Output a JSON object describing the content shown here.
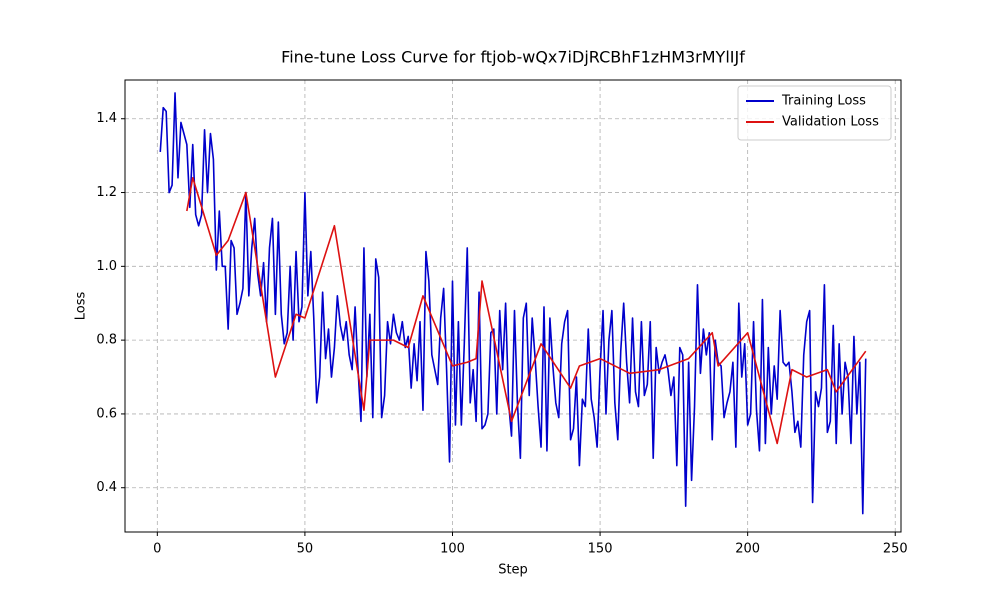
{
  "chart_data": {
    "type": "line",
    "title": "Fine-tune Loss Curve for ftjob-wQx7iDjRCBhF1zHM3rMYlIJf",
    "x_label": "Step",
    "y_label": "Loss",
    "xlim": [
      -10.95,
      251.95
    ],
    "ylim": [
      0.28,
      1.505
    ],
    "xticks": [
      0,
      50,
      100,
      150,
      200,
      250
    ],
    "yticks": [
      0.4,
      0.6,
      0.8,
      {
        "value": 1,
        "label": "1.0"
      },
      1.2,
      1.4
    ],
    "grid": true,
    "legend": "upper right",
    "series": [
      {
        "name": "Training Loss",
        "color": "#0000cc",
        "x": [
          1,
          2,
          3,
          4,
          5,
          6,
          7,
          8,
          9,
          10,
          11,
          12,
          13,
          14,
          15,
          16,
          17,
          18,
          19,
          20,
          21,
          22,
          23,
          24,
          25,
          26,
          27,
          28,
          29,
          30,
          31,
          32,
          33,
          34,
          35,
          36,
          37,
          38,
          39,
          40,
          41,
          42,
          43,
          44,
          45,
          46,
          47,
          48,
          49,
          50,
          51,
          52,
          53,
          54,
          55,
          56,
          57,
          58,
          59,
          60,
          61,
          62,
          63,
          64,
          65,
          66,
          67,
          68,
          69,
          70,
          71,
          72,
          73,
          74,
          75,
          76,
          77,
          78,
          79,
          80,
          81,
          82,
          83,
          84,
          85,
          86,
          87,
          88,
          89,
          90,
          91,
          92,
          93,
          94,
          95,
          96,
          97,
          98,
          99,
          100,
          101,
          102,
          103,
          104,
          105,
          106,
          107,
          108,
          109,
          110,
          111,
          112,
          113,
          114,
          115,
          116,
          117,
          118,
          119,
          120,
          121,
          122,
          123,
          124,
          125,
          126,
          127,
          128,
          129,
          130,
          131,
          132,
          133,
          134,
          135,
          136,
          137,
          138,
          139,
          140,
          141,
          142,
          143,
          144,
          145,
          146,
          147,
          148,
          149,
          150,
          151,
          152,
          153,
          154,
          155,
          156,
          157,
          158,
          159,
          160,
          161,
          162,
          163,
          164,
          165,
          166,
          167,
          168,
          169,
          170,
          171,
          172,
          173,
          174,
          175,
          176,
          177,
          178,
          179,
          180,
          181,
          182,
          183,
          184,
          185,
          186,
          187,
          188,
          189,
          190,
          191,
          192,
          193,
          194,
          195,
          196,
          197,
          198,
          199,
          200,
          201,
          202,
          203,
          204,
          205,
          206,
          207,
          208,
          209,
          210,
          211,
          212,
          213,
          214,
          215,
          216,
          217,
          218,
          219,
          220,
          221,
          222,
          223,
          224,
          225,
          226,
          227,
          228,
          229,
          230,
          231,
          232,
          233,
          234,
          235,
          236,
          237,
          238,
          239,
          240
        ],
        "values": [
          1.31,
          1.43,
          1.42,
          1.2,
          1.22,
          1.47,
          1.24,
          1.39,
          1.36,
          1.33,
          1.16,
          1.33,
          1.14,
          1.11,
          1.14,
          1.37,
          1.2,
          1.36,
          1.29,
          0.99,
          1.15,
          1.0,
          1.0,
          0.83,
          1.07,
          1.05,
          0.87,
          0.9,
          0.94,
          1.2,
          0.92,
          1.05,
          1.13,
          0.98,
          0.92,
          1.01,
          0.85,
          1.05,
          1.13,
          0.87,
          1.12,
          0.87,
          0.79,
          0.82,
          1.0,
          0.8,
          1.04,
          0.85,
          0.89,
          1.2,
          0.92,
          1.04,
          0.86,
          0.63,
          0.7,
          0.93,
          0.75,
          0.83,
          0.7,
          0.78,
          0.92,
          0.84,
          0.8,
          0.85,
          0.76,
          0.72,
          0.89,
          0.72,
          0.58,
          1.05,
          0.7,
          0.87,
          0.59,
          1.02,
          0.97,
          0.59,
          0.65,
          0.85,
          0.79,
          0.87,
          0.82,
          0.8,
          0.85,
          0.78,
          0.81,
          0.67,
          0.79,
          0.69,
          0.85,
          0.61,
          1.04,
          0.96,
          0.76,
          0.72,
          0.68,
          0.86,
          0.94,
          0.72,
          0.47,
          0.96,
          0.57,
          0.85,
          0.57,
          0.79,
          1.05,
          0.63,
          0.72,
          0.58,
          0.93,
          0.56,
          0.57,
          0.6,
          0.82,
          0.83,
          0.6,
          0.88,
          0.72,
          0.9,
          0.63,
          0.54,
          0.88,
          0.63,
          0.48,
          0.86,
          0.9,
          0.65,
          0.86,
          0.75,
          0.62,
          0.51,
          0.89,
          0.5,
          0.86,
          0.73,
          0.63,
          0.59,
          0.79,
          0.85,
          0.88,
          0.53,
          0.56,
          0.7,
          0.46,
          0.64,
          0.62,
          0.83,
          0.64,
          0.59,
          0.51,
          0.72,
          0.88,
          0.6,
          0.8,
          0.88,
          0.63,
          0.53,
          0.77,
          0.9,
          0.74,
          0.63,
          0.86,
          0.66,
          0.62,
          0.85,
          0.65,
          0.68,
          0.85,
          0.48,
          0.78,
          0.71,
          0.74,
          0.76,
          0.72,
          0.65,
          0.7,
          0.46,
          0.78,
          0.76,
          0.35,
          0.74,
          0.42,
          0.62,
          0.95,
          0.71,
          0.83,
          0.76,
          0.82,
          0.53,
          0.8,
          0.74,
          0.73,
          0.59,
          0.63,
          0.66,
          0.74,
          0.51,
          0.9,
          0.7,
          0.79,
          0.57,
          0.6,
          0.85,
          0.61,
          0.5,
          0.91,
          0.52,
          0.78,
          0.6,
          0.73,
          0.64,
          0.88,
          0.74,
          0.73,
          0.74,
          0.66,
          0.55,
          0.58,
          0.51,
          0.76,
          0.85,
          0.88,
          0.36,
          0.66,
          0.62,
          0.67,
          0.95,
          0.55,
          0.58,
          0.84,
          0.52,
          0.79,
          0.6,
          0.74,
          0.7,
          0.52,
          0.81,
          0.6,
          0.74,
          0.33,
          0.75
        ]
      },
      {
        "name": "Validation Loss",
        "color": "#dd1111",
        "x": [
          10,
          12,
          20,
          24,
          30,
          40,
          47,
          50,
          60,
          70,
          72,
          80,
          85,
          90,
          100,
          105,
          108,
          110,
          120,
          130,
          140,
          143,
          150,
          160,
          170,
          180,
          188,
          190,
          200,
          210,
          215,
          220,
          227,
          230,
          240
        ],
        "values": [
          1.15,
          1.24,
          1.03,
          1.07,
          1.2,
          0.7,
          0.87,
          0.86,
          1.11,
          0.61,
          0.8,
          0.8,
          0.78,
          0.92,
          0.73,
          0.74,
          0.75,
          0.96,
          0.58,
          0.79,
          0.67,
          0.73,
          0.75,
          0.71,
          0.72,
          0.75,
          0.82,
          0.73,
          0.82,
          0.52,
          0.72,
          0.7,
          0.72,
          0.66,
          0.77
        ]
      }
    ]
  }
}
